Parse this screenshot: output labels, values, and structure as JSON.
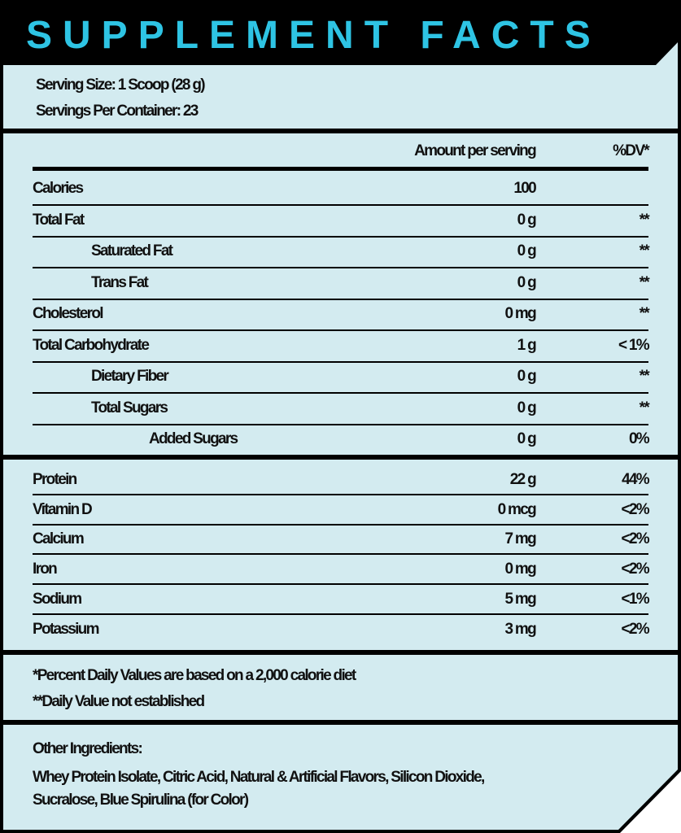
{
  "title": "SUPPLEMENT FACTS",
  "serving_size": "Serving Size: 1 Scoop (28 g)",
  "servings_per_container": "Servings Per Container: 23",
  "header": {
    "amount": "Amount per serving",
    "dv": "%DV*"
  },
  "rows": [
    {
      "label": "Calories",
      "amount": "100",
      "dv": "",
      "indent": 0
    },
    {
      "label": "Total Fat",
      "amount": "0 g",
      "dv": "**",
      "indent": 0
    },
    {
      "label": "Saturated Fat",
      "amount": "0 g",
      "dv": "**",
      "indent": 1
    },
    {
      "label": "Trans Fat",
      "amount": "0 g",
      "dv": "**",
      "indent": 1
    },
    {
      "label": "Cholesterol",
      "amount": "0 mg",
      "dv": "**",
      "indent": 0
    },
    {
      "label": "Total Carbohydrate",
      "amount": "1 g",
      "dv": "< 1%",
      "indent": 0
    },
    {
      "label": "Dietary Fiber",
      "amount": "0 g",
      "dv": "**",
      "indent": 1
    },
    {
      "label": "Total Sugars",
      "amount": "0 g",
      "dv": "**",
      "indent": 1
    },
    {
      "label": "Added Sugars",
      "amount": "0 g",
      "dv": "0%",
      "indent": 2
    }
  ],
  "rows2": [
    {
      "label": "Protein",
      "amount": "22 g",
      "dv": "44%"
    },
    {
      "label": "Vitamin D",
      "amount": "0 mcg",
      "dv": "<2%"
    },
    {
      "label": "Calcium",
      "amount": "7 mg",
      "dv": "<2%"
    },
    {
      "label": "Iron",
      "amount": "0 mg",
      "dv": "<2%"
    },
    {
      "label": "Sodium",
      "amount": "5 mg",
      "dv": "<1%"
    },
    {
      "label": "Potassium",
      "amount": "3 mg",
      "dv": "<2%"
    }
  ],
  "footnotes": [
    "*Percent Daily Values are based on a 2,000 calorie diet",
    "**Daily Value not established"
  ],
  "ingredients": {
    "heading": "Other Ingredients:",
    "line1": "Whey Protein Isolate, Citric Acid, Natural & Artificial Flavors, Silicon Dioxide,",
    "line2": "Sucralose, Blue Spirulina (for Color)"
  },
  "colors": {
    "title": "#2ec4e4",
    "panel": "#d3ebf0",
    "header_bg": "#000000"
  }
}
